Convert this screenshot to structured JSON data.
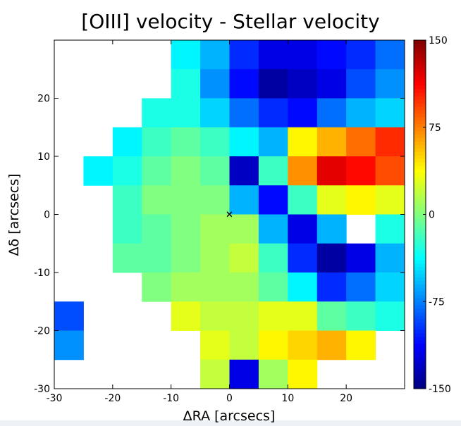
{
  "chart_data": {
    "type": "heatmap",
    "title": "[OIII] velocity - Stellar velocity",
    "xlabel": "ΔRA [arcsecs]",
    "ylabel": "Δδ [arcsecs]",
    "xlim": [
      -30,
      30
    ],
    "ylim": [
      -30,
      30
    ],
    "xticks": [
      -30,
      -20,
      -10,
      0,
      10,
      20
    ],
    "yticks": [
      -30,
      -20,
      -10,
      0,
      10,
      20
    ],
    "clim": [
      -150,
      150
    ],
    "cticks": [
      -150,
      -75,
      0,
      75,
      150
    ],
    "colormap": "jet",
    "z": [
      [
        null,
        null,
        null,
        null,
        -40,
        -60,
        -100,
        -120,
        -120,
        -110,
        -100,
        -80
      ],
      [
        null,
        null,
        null,
        null,
        -30,
        -70,
        -110,
        -140,
        -130,
        -120,
        -90,
        -70
      ],
      [
        null,
        null,
        null,
        -30,
        -30,
        -50,
        -80,
        -100,
        -110,
        -80,
        -60,
        -50
      ],
      [
        null,
        null,
        -40,
        -20,
        -10,
        -20,
        -40,
        -60,
        40,
        60,
        80,
        100
      ],
      [
        null,
        -40,
        -30,
        -10,
        0,
        -10,
        -130,
        -20,
        70,
        120,
        110,
        90
      ],
      [
        null,
        null,
        -20,
        0,
        0,
        0,
        -60,
        -110,
        -20,
        30,
        40,
        30
      ],
      [
        null,
        null,
        -20,
        -10,
        0,
        10,
        10,
        -60,
        -120,
        -60,
        null,
        -30
      ],
      [
        null,
        null,
        -10,
        -10,
        0,
        10,
        20,
        -20,
        -100,
        -140,
        -120,
        -60
      ],
      [
        null,
        null,
        null,
        0,
        10,
        10,
        10,
        -10,
        -40,
        -100,
        -80,
        -50
      ],
      [
        -90,
        null,
        null,
        null,
        30,
        20,
        20,
        30,
        30,
        -10,
        -20,
        -30
      ],
      [
        -70,
        null,
        null,
        null,
        null,
        30,
        20,
        40,
        50,
        60,
        40,
        null
      ],
      [
        null,
        null,
        null,
        null,
        null,
        20,
        -120,
        10,
        40,
        null,
        null,
        null
      ]
    ],
    "marker": {
      "x": 0,
      "y": 0
    }
  }
}
